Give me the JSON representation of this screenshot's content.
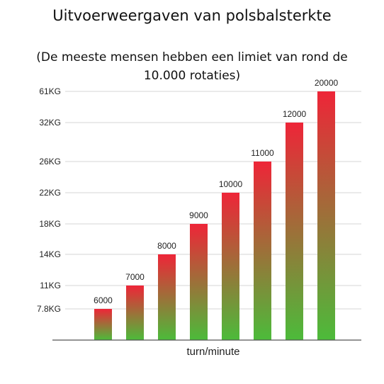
{
  "chart_data": {
    "type": "bar",
    "title": "Uitvoerweergaven van polsbalsterkte",
    "subtitle": "(De meeste mensen hebben een limiet van rond de 10.000 rotaties)",
    "xlabel": "turn/minute",
    "ylabel": "",
    "y_ticks": [
      "7.8KG",
      "11KG",
      "14KG",
      "18KG",
      "22KG",
      "26KG",
      "32KG",
      "61KG"
    ],
    "categories": [
      "6000",
      "7000",
      "8000",
      "9000",
      "10000",
      "11000",
      "12000",
      "20000"
    ],
    "values": [
      "7.8KG",
      "11KG",
      "14KG",
      "18KG",
      "22KG",
      "26KG",
      "32KG",
      "61KG"
    ],
    "data_labels": [
      "6000",
      "7000",
      "8000",
      "9000",
      "10000",
      "11000",
      "12000",
      "20000"
    ],
    "grid": true,
    "legend": "none",
    "colors": {
      "bar_top": "#ee2538",
      "bar_bottom": "#4cbb3a",
      "grid": "#d6d6d6",
      "axis": "#555555",
      "text": "#222222"
    }
  }
}
